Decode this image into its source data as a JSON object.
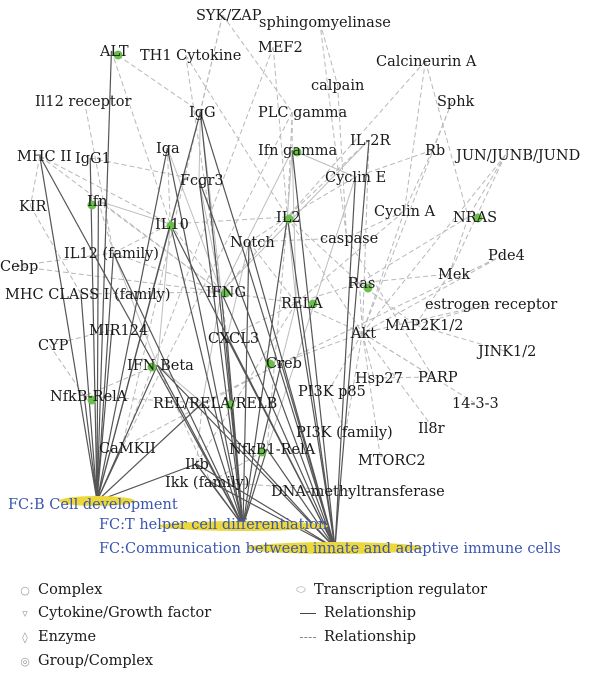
{
  "colors": {
    "highlight": "#6abf4b",
    "fc_ellipse": "#ecd83a",
    "fc_text": "#3a55b0"
  },
  "nodes": [
    {
      "id": "syk",
      "label": "SYK/ZAP",
      "highlight": false
    },
    {
      "id": "sphingo",
      "label": "sphingomyelinase",
      "highlight": false
    },
    {
      "id": "alt",
      "label": "ALT",
      "highlight": true
    },
    {
      "id": "th1",
      "label": "TH1 Cytokine",
      "highlight": false
    },
    {
      "id": "mef2",
      "label": "MEF2",
      "highlight": false
    },
    {
      "id": "calcineurin",
      "label": "Calcineurin A",
      "highlight": false
    },
    {
      "id": "calpain",
      "label": "calpain",
      "highlight": false
    },
    {
      "id": "il12r",
      "label": "Il12 receptor",
      "highlight": false
    },
    {
      "id": "igg",
      "label": "IgG",
      "highlight": false
    },
    {
      "id": "plcg",
      "label": "PLC gamma",
      "highlight": false
    },
    {
      "id": "sphk",
      "label": "Sphk",
      "highlight": false
    },
    {
      "id": "il2r",
      "label": "IL-2R",
      "highlight": false
    },
    {
      "id": "mhc2",
      "label": "MHC II",
      "highlight": false
    },
    {
      "id": "igg1",
      "label": "IgG1",
      "highlight": false
    },
    {
      "id": "iga",
      "label": "Iga",
      "highlight": false
    },
    {
      "id": "ifng_low",
      "label": "Ifn gamma",
      "highlight": true
    },
    {
      "id": "rb",
      "label": "Rb",
      "highlight": false
    },
    {
      "id": "jun",
      "label": "JUN/JUNB/JUND",
      "highlight": false
    },
    {
      "id": "fcgr3",
      "label": "Fcgr3",
      "highlight": false
    },
    {
      "id": "cycline",
      "label": "Cyclin E",
      "highlight": false
    },
    {
      "id": "kir",
      "label": "KIR",
      "highlight": false
    },
    {
      "id": "ifn",
      "label": "Ifn",
      "highlight": true
    },
    {
      "id": "il10",
      "label": "IL10",
      "highlight": true
    },
    {
      "id": "il2",
      "label": "IL2",
      "highlight": true
    },
    {
      "id": "cyclina",
      "label": "Cyclin A",
      "highlight": false
    },
    {
      "id": "nras",
      "label": "NRAS",
      "highlight": true
    },
    {
      "id": "notch",
      "label": "Notch",
      "highlight": false
    },
    {
      "id": "caspase",
      "label": "caspase",
      "highlight": false
    },
    {
      "id": "il12f",
      "label": "IL12 (family)",
      "highlight": false
    },
    {
      "id": "pde4",
      "label": "Pde4",
      "highlight": false
    },
    {
      "id": "cebp",
      "label": "Cebp",
      "highlight": false
    },
    {
      "id": "ras",
      "label": "Ras",
      "highlight": true
    },
    {
      "id": "mek",
      "label": "Mek",
      "highlight": false
    },
    {
      "id": "mhc1",
      "label": "MHC CLASS I (family)",
      "highlight": false
    },
    {
      "id": "ifng",
      "label": "IFNG",
      "highlight": true
    },
    {
      "id": "rela",
      "label": "RELA",
      "highlight": true
    },
    {
      "id": "estrogen",
      "label": "estrogen receptor",
      "highlight": false
    },
    {
      "id": "mir124",
      "label": "MIR124",
      "highlight": false
    },
    {
      "id": "akt",
      "label": "Akt",
      "highlight": false
    },
    {
      "id": "map2k",
      "label": "MAP2K1/2",
      "highlight": false
    },
    {
      "id": "cxcl3",
      "label": "CXCL3",
      "highlight": false
    },
    {
      "id": "cyp",
      "label": "CYP",
      "highlight": false
    },
    {
      "id": "jink",
      "label": "JINK1/2",
      "highlight": false
    },
    {
      "id": "ifnbeta",
      "label": "IFN Beta",
      "highlight": true
    },
    {
      "id": "creb",
      "label": "Creb",
      "highlight": true
    },
    {
      "id": "hsp27",
      "label": "Hsp27",
      "highlight": false
    },
    {
      "id": "parp",
      "label": "PARP",
      "highlight": false
    },
    {
      "id": "nfkbrela",
      "label": "NfkB-RelA",
      "highlight": true
    },
    {
      "id": "pi3kp85",
      "label": "PI3K p85",
      "highlight": false
    },
    {
      "id": "relrela",
      "label": "REL/RELA/RELB",
      "highlight": true
    },
    {
      "id": "p1433",
      "label": "14-3-3",
      "highlight": false
    },
    {
      "id": "pi3kf",
      "label": "PI3K (family)",
      "highlight": false
    },
    {
      "id": "il8r",
      "label": "Il8r",
      "highlight": false
    },
    {
      "id": "camkii",
      "label": "CaMKII",
      "highlight": false
    },
    {
      "id": "ikb",
      "label": "Ikb",
      "highlight": false
    },
    {
      "id": "nfkb1rela",
      "label": "NfkB1-RelA",
      "highlight": true
    },
    {
      "id": "mtorc2",
      "label": "MTORC2",
      "highlight": false
    },
    {
      "id": "ikk",
      "label": "Ikk (family)",
      "highlight": false
    },
    {
      "id": "dnamt",
      "label": "DNA-methyltransferase",
      "highlight": false
    }
  ],
  "functions": [
    {
      "id": "fc1",
      "label": "FC:B Cell development"
    },
    {
      "id": "fc2",
      "label": "FC:T helper cell differentiation"
    },
    {
      "id": "fc3",
      "label": "FC:Communication between innate and adaptive immune cells"
    }
  ],
  "legend": [
    {
      "icon": "complex-icon",
      "label": "Complex"
    },
    {
      "icon": "cytokine-icon",
      "label": "Cytokine/Growth factor"
    },
    {
      "icon": "enzyme-icon",
      "label": "Enzyme"
    },
    {
      "icon": "group-icon",
      "label": "Group/Complex"
    },
    {
      "icon": "transcription-regulator-icon",
      "label": "Transcription regulator"
    },
    {
      "icon": "solid-line-icon",
      "label": "Relationship"
    },
    {
      "icon": "dashed-line-icon",
      "label": "Relationship"
    }
  ]
}
